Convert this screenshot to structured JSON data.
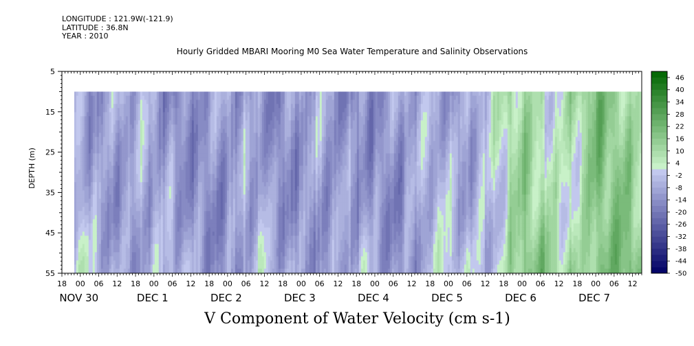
{
  "meta": {
    "longitude": "LONGITUDE : 121.9W(-121.9)",
    "latitude": "LATITUDE : 36.8N",
    "year": "YEAR : 2010"
  },
  "chart_data": {
    "type": "heatmap",
    "title": "Hourly Gridded MBARI Mooring M0 Sea Water Temperature and Salinity Observations",
    "xlabel": "V Component of Water Velocity (cm s-1)",
    "ylabel": "DEPTH (m)",
    "y_axis": {
      "ticks": [
        5,
        15,
        25,
        35,
        45,
        55
      ],
      "range": [
        5,
        55
      ],
      "inverted": true
    },
    "x_axis": {
      "hour_ticks": [
        "18",
        "00",
        "06",
        "12",
        "18",
        "00",
        "06",
        "12",
        "18",
        "00",
        "06",
        "12",
        "18",
        "00",
        "06",
        "12",
        "18",
        "00",
        "06",
        "12",
        "18",
        "00",
        "06",
        "12",
        "18",
        "00",
        "06",
        "12",
        "18",
        "00",
        "06",
        "12"
      ],
      "day_labels": [
        "NOV 30",
        "DEC  1",
        "DEC  2",
        "DEC  3",
        "DEC  4",
        "DEC  5",
        "DEC  6",
        "DEC  7"
      ],
      "start": "NOV 29 18:00",
      "end": "DEC 7 15:00"
    },
    "data_extent": {
      "depth_min": 10,
      "depth_max": 55,
      "time_start": "NOV 29 22:00"
    },
    "colorbar": {
      "labels": [
        "46",
        "40",
        "34",
        "28",
        "22",
        "16",
        "10",
        "4",
        "-2",
        "-8",
        "-14",
        "-20",
        "-26",
        "-32",
        "-38",
        "-44",
        "-50"
      ],
      "range": [
        -50,
        49
      ]
    },
    "trend": [
      {
        "t": "NOV 30 00",
        "v": -6
      },
      {
        "t": "NOV 30 12",
        "v": -9
      },
      {
        "t": "DEC 1 00",
        "v": -12
      },
      {
        "t": "DEC 1 12",
        "v": -10
      },
      {
        "t": "DEC 2 00",
        "v": -14
      },
      {
        "t": "DEC 2 12",
        "v": -11
      },
      {
        "t": "DEC 3 00",
        "v": -9
      },
      {
        "t": "DEC 3 12",
        "v": -16
      },
      {
        "t": "DEC 4 00",
        "v": -10
      },
      {
        "t": "DEC 4 12",
        "v": -13
      },
      {
        "t": "DEC 5 00",
        "v": -6
      },
      {
        "t": "DEC 5 12",
        "v": -3
      },
      {
        "t": "DEC 6 00",
        "v": 9
      },
      {
        "t": "DEC 6 12",
        "v": 7
      },
      {
        "t": "DEC 7 00",
        "v": 14
      },
      {
        "t": "DEC 7 12",
        "v": 10
      }
    ]
  }
}
